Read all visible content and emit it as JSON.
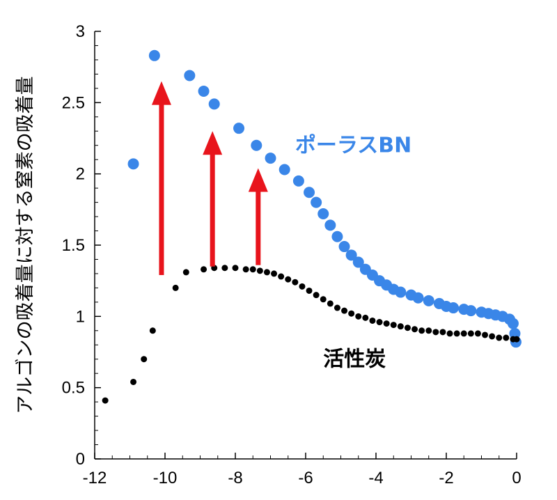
{
  "chart_data": {
    "type": "scatter",
    "title": "",
    "xlabel": "",
    "ylabel": "アルゴンの吸着量に対する窒素の吸着量",
    "xlim": [
      -12,
      0
    ],
    "ylim": [
      0,
      3
    ],
    "xticks": [
      "-12",
      "-10",
      "-8",
      "-6",
      "-4",
      "-2",
      "0"
    ],
    "yticks": [
      "0",
      "0.5",
      "1",
      "1.5",
      "2",
      "2.5",
      "3"
    ],
    "grid": false,
    "series": [
      {
        "name": "ポーラスBN",
        "color": "#3a86e8",
        "points": [
          [
            -10.9,
            2.07
          ],
          [
            -10.3,
            2.83
          ],
          [
            -9.3,
            2.69
          ],
          [
            -8.9,
            2.58
          ],
          [
            -8.6,
            2.49
          ],
          [
            -7.9,
            2.32
          ],
          [
            -7.4,
            2.2
          ],
          [
            -7.0,
            2.11
          ],
          [
            -6.6,
            2.03
          ],
          [
            -6.2,
            1.95
          ],
          [
            -5.9,
            1.87
          ],
          [
            -5.7,
            1.8
          ],
          [
            -5.5,
            1.72
          ],
          [
            -5.3,
            1.64
          ],
          [
            -5.1,
            1.56
          ],
          [
            -4.9,
            1.49
          ],
          [
            -4.7,
            1.43
          ],
          [
            -4.5,
            1.38
          ],
          [
            -4.3,
            1.33
          ],
          [
            -4.1,
            1.29
          ],
          [
            -3.9,
            1.25
          ],
          [
            -3.7,
            1.22
          ],
          [
            -3.5,
            1.19
          ],
          [
            -3.3,
            1.17
          ],
          [
            -3.0,
            1.15
          ],
          [
            -2.8,
            1.13
          ],
          [
            -2.5,
            1.11
          ],
          [
            -2.2,
            1.09
          ],
          [
            -2.0,
            1.07
          ],
          [
            -1.8,
            1.06
          ],
          [
            -1.5,
            1.05
          ],
          [
            -1.3,
            1.04
          ],
          [
            -1.0,
            1.03
          ],
          [
            -0.8,
            1.02
          ],
          [
            -0.6,
            1.01
          ],
          [
            -0.4,
            1.0
          ],
          [
            -0.2,
            0.98
          ],
          [
            -0.1,
            0.95
          ],
          [
            -0.05,
            0.88
          ],
          [
            -0.02,
            0.82
          ]
        ]
      },
      {
        "name": "活性炭",
        "color": "#000000",
        "points": [
          [
            -11.7,
            0.41
          ],
          [
            -10.9,
            0.54
          ],
          [
            -10.6,
            0.7
          ],
          [
            -10.35,
            0.9
          ],
          [
            -9.7,
            1.2
          ],
          [
            -9.4,
            1.31
          ],
          [
            -8.9,
            1.33
          ],
          [
            -8.6,
            1.34
          ],
          [
            -8.3,
            1.34
          ],
          [
            -8.0,
            1.34
          ],
          [
            -7.7,
            1.33
          ],
          [
            -7.5,
            1.33
          ],
          [
            -7.3,
            1.32
          ],
          [
            -7.1,
            1.31
          ],
          [
            -6.9,
            1.3
          ],
          [
            -6.7,
            1.28
          ],
          [
            -6.5,
            1.26
          ],
          [
            -6.3,
            1.24
          ],
          [
            -6.1,
            1.21
          ],
          [
            -5.9,
            1.18
          ],
          [
            -5.7,
            1.15
          ],
          [
            -5.5,
            1.12
          ],
          [
            -5.3,
            1.09
          ],
          [
            -5.1,
            1.06
          ],
          [
            -4.9,
            1.04
          ],
          [
            -4.7,
            1.02
          ],
          [
            -4.5,
            1.0
          ],
          [
            -4.3,
            0.99
          ],
          [
            -4.1,
            0.97
          ],
          [
            -3.9,
            0.96
          ],
          [
            -3.7,
            0.95
          ],
          [
            -3.5,
            0.94
          ],
          [
            -3.3,
            0.93
          ],
          [
            -3.1,
            0.92
          ],
          [
            -2.9,
            0.91
          ],
          [
            -2.7,
            0.9
          ],
          [
            -2.5,
            0.9
          ],
          [
            -2.3,
            0.89
          ],
          [
            -2.1,
            0.89
          ],
          [
            -1.9,
            0.88
          ],
          [
            -1.7,
            0.88
          ],
          [
            -1.5,
            0.88
          ],
          [
            -1.3,
            0.88
          ],
          [
            -1.1,
            0.88
          ],
          [
            -0.9,
            0.87
          ],
          [
            -0.7,
            0.86
          ],
          [
            -0.5,
            0.85
          ],
          [
            -0.3,
            0.85
          ],
          [
            -0.1,
            0.84
          ],
          [
            0.0,
            0.84
          ]
        ]
      }
    ],
    "annotations": [
      {
        "type": "arrow",
        "color": "#e8141c",
        "x": -10.1,
        "from": 1.29,
        "to": 2.65
      },
      {
        "type": "arrow",
        "color": "#e8141c",
        "x": -8.65,
        "from": 1.35,
        "to": 2.3
      },
      {
        "type": "arrow",
        "color": "#e8141c",
        "x": -7.35,
        "from": 1.36,
        "to": 2.04
      }
    ],
    "series_labels": [
      {
        "text": "ポーラスBN",
        "x": -6.3,
        "y": 2.2
      },
      {
        "text": "活性炭",
        "x": -5.5,
        "y": 0.7
      }
    ]
  }
}
